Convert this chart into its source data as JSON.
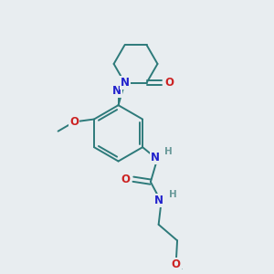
{
  "background_color": "#e8edf0",
  "bond_color": "#2d7a7a",
  "atom_colors": {
    "N": "#2222cc",
    "O": "#cc2222",
    "H": "#6a9a9a",
    "C": "#2d7a7a"
  },
  "figsize": [
    3.0,
    3.0
  ],
  "dpi": 100
}
